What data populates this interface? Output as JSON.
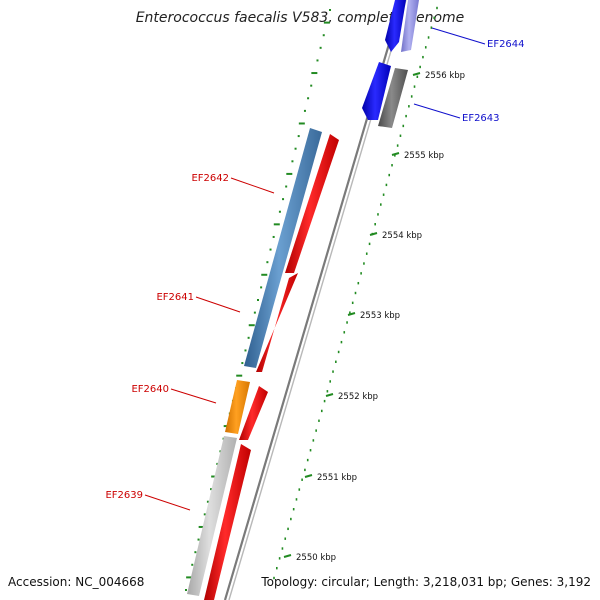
{
  "title": "Enterococcus faecalis V583, complete genome",
  "accession": "Accession: NC_004668",
  "topology": "Topology: circular; Length: 3,218,031 bp; Genes: 3,192",
  "ticks": [
    {
      "label": "2556 kbp"
    },
    {
      "label": "2555 kbp"
    },
    {
      "label": "2554 kbp"
    },
    {
      "label": "2553 kbp"
    },
    {
      "label": "2552 kbp"
    },
    {
      "label": "2551 kbp"
    },
    {
      "label": "2550 kbp"
    }
  ],
  "gene_labels": [
    {
      "name": "EF2644",
      "color": "#1010cc"
    },
    {
      "name": "EF2643",
      "color": "#1010cc"
    },
    {
      "name": "EF2642",
      "color": "#cc0000"
    },
    {
      "name": "EF2641",
      "color": "#cc0000"
    },
    {
      "name": "EF2640",
      "color": "#cc0000"
    },
    {
      "name": "EF2639",
      "color": "#cc0000"
    }
  ],
  "colors": {
    "forward_gene": "#ee0000",
    "reverse_gene": "#0000ee",
    "cog_blue": "#4a7fb5",
    "cog_orange": "#ff8c00",
    "cog_gray": "#c0c0c0",
    "cog_dark": "#666666",
    "cog_lavender": "#9090e0",
    "backbone": "#888888",
    "ticks": "#228b22"
  }
}
